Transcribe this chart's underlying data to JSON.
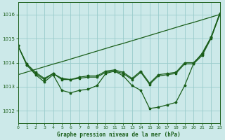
{
  "title": "Graphe pression niveau de la mer (hPa)",
  "xlim": [
    0,
    23
  ],
  "ylim": [
    1011.5,
    1016.5
  ],
  "yticks": [
    1012,
    1013,
    1014,
    1015,
    1016
  ],
  "xticks": [
    0,
    1,
    2,
    3,
    4,
    5,
    6,
    7,
    8,
    9,
    10,
    11,
    12,
    13,
    14,
    15,
    16,
    17,
    18,
    19,
    20,
    21,
    22,
    23
  ],
  "bg_color": "#cce9e9",
  "grid_color": "#99cccc",
  "line_color": "#1a5e1a",
  "line_diag": [
    1013.5,
    1013.61,
    1013.72,
    1013.83,
    1013.94,
    1014.04,
    1014.15,
    1014.26,
    1014.37,
    1014.48,
    1014.59,
    1014.7,
    1014.8,
    1014.91,
    1015.02,
    1015.13,
    1015.24,
    1015.35,
    1015.46,
    1015.57,
    1015.67,
    1015.78,
    1015.89,
    1016.0
  ],
  "line_main": [
    1014.7,
    1013.9,
    1013.5,
    1013.2,
    1013.5,
    1012.85,
    1012.75,
    1012.85,
    1012.9,
    1013.05,
    1013.55,
    1013.65,
    1013.45,
    1013.05,
    1012.85,
    1012.1,
    1012.15,
    1012.25,
    1012.35,
    1013.05,
    1013.95,
    1014.4,
    1015.05,
    1016.0
  ],
  "line_b": [
    1014.7,
    1013.9,
    1013.55,
    1013.3,
    1013.55,
    1013.3,
    1013.3,
    1013.35,
    1013.4,
    1013.4,
    1013.6,
    1013.65,
    1013.55,
    1013.3,
    1013.6,
    1013.1,
    1013.45,
    1013.5,
    1013.55,
    1013.95,
    1013.95,
    1014.3,
    1015.0,
    1016.0
  ],
  "line_c": [
    1014.7,
    1013.95,
    1013.6,
    1013.35,
    1013.55,
    1013.35,
    1013.3,
    1013.4,
    1013.45,
    1013.45,
    1013.65,
    1013.7,
    1013.6,
    1013.35,
    1013.65,
    1013.15,
    1013.5,
    1013.55,
    1013.6,
    1014.0,
    1014.0,
    1014.35,
    1015.05,
    1016.05
  ]
}
